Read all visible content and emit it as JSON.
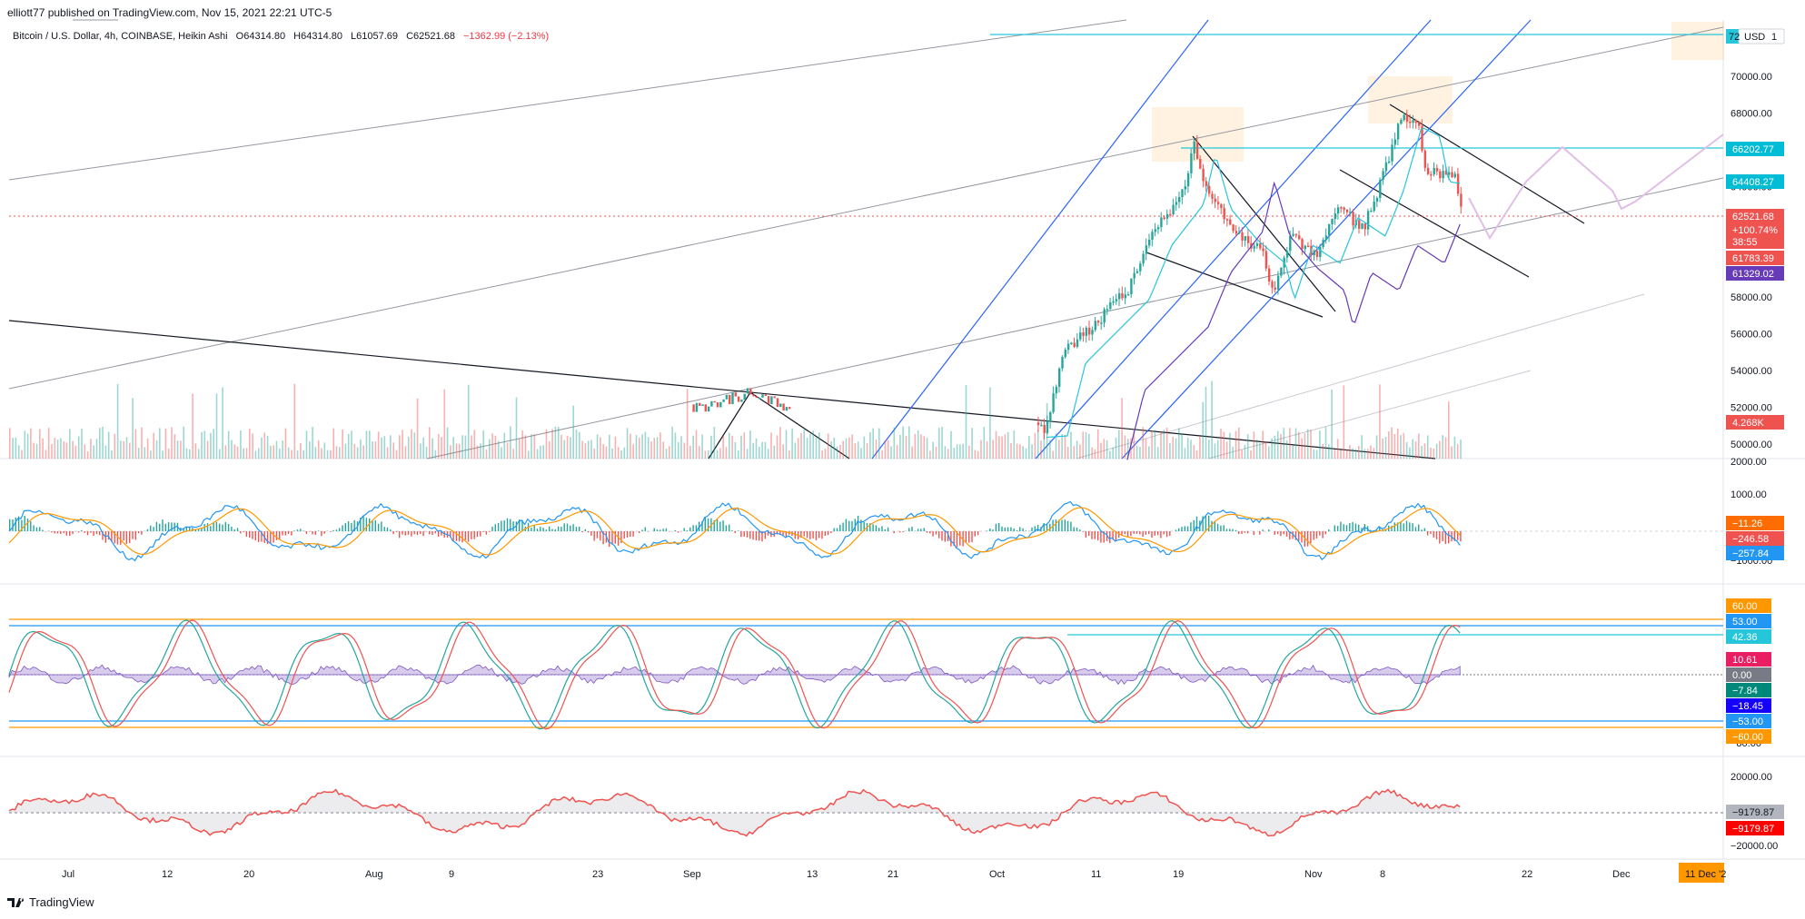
{
  "header": {
    "publish_line": "elliott77 published on TradingView.com, Nov 15, 2021 22:21 UTC-5"
  },
  "legend": {
    "symbol": "Bitcoin / U.S. Dollar, 4h, COINBASE, Heikin Ashi",
    "open": "O64314.80",
    "high": "H64314.80",
    "low": "L61057.69",
    "close": "C62521.68",
    "change": "−1362.99 (−2.13%)"
  },
  "colors": {
    "up": "#26a69a",
    "down": "#ef5350",
    "cyan_line": "#26c6da",
    "blue_channel": "#2962ff",
    "orange_level": "#ff9800",
    "purple_ma": "#673ab7",
    "pink_projection": "#e1bee7",
    "grid": "#f0f3fa"
  },
  "price_axis": {
    "ticks": [
      "70000.00",
      "68000.00",
      "66000.00",
      "64000.00",
      "62000.00",
      "60000.00",
      "58000.00",
      "56000.00",
      "54000.00",
      "52000.00",
      "50000.00"
    ],
    "currency_badge": "USD",
    "top_label": "72",
    "badges": [
      {
        "text": "66202.77",
        "color": "#00bcd4"
      },
      {
        "text": "64408.27",
        "color": "#00bcd4"
      },
      {
        "text": "62521.68",
        "color": "#ef5350"
      },
      {
        "text": "+100.74%",
        "color": "#ef5350"
      },
      {
        "text": "38:55",
        "color": "#ef5350"
      },
      {
        "text": "61783.39",
        "color": "#ef5350"
      },
      {
        "text": "61329.02",
        "color": "#673ab7"
      },
      {
        "text": "4.268K",
        "color": "#ef5350"
      }
    ]
  },
  "macd_axis": {
    "ticks": [
      "2000.00",
      "1000.00",
      "−1000.00"
    ],
    "badges": [
      {
        "text": "−11.26",
        "color": "#ff6d00"
      },
      {
        "text": "−246.58",
        "color": "#ef5350"
      },
      {
        "text": "−257.84",
        "color": "#2196f3"
      }
    ]
  },
  "osc_axis": {
    "ticks": [
      "−80.00"
    ],
    "badges": [
      {
        "text": "60.00",
        "color": "#ff9800"
      },
      {
        "text": "53.00",
        "color": "#2196f3"
      },
      {
        "text": "42.36",
        "color": "#26c6da"
      },
      {
        "text": "10.61",
        "color": "#e91e63"
      },
      {
        "text": "0.00",
        "color": "#787b86"
      },
      {
        "text": "−7.84",
        "color": "#00897b"
      },
      {
        "text": "−18.45",
        "color": "#1500ff"
      },
      {
        "text": "−53.00",
        "color": "#2196f3"
      },
      {
        "text": "−60.00",
        "color": "#ff9800"
      }
    ]
  },
  "flow_axis": {
    "ticks": [
      "20000.00",
      "−20000.00"
    ],
    "badges": [
      {
        "text": "−9179.87",
        "color": "#b2b5be"
      },
      {
        "text": "−9179.87",
        "color": "#ff0000"
      }
    ]
  },
  "time_axis": {
    "ticks": [
      "Jul",
      "12",
      "20",
      "Aug",
      "9",
      "23",
      "Sep",
      "13",
      "21",
      "Oct",
      "11",
      "19",
      "Nov",
      "8",
      "22",
      "Dec"
    ],
    "cursor_label": "11 Dec '2"
  },
  "footer": {
    "brand": "TradingView"
  }
}
